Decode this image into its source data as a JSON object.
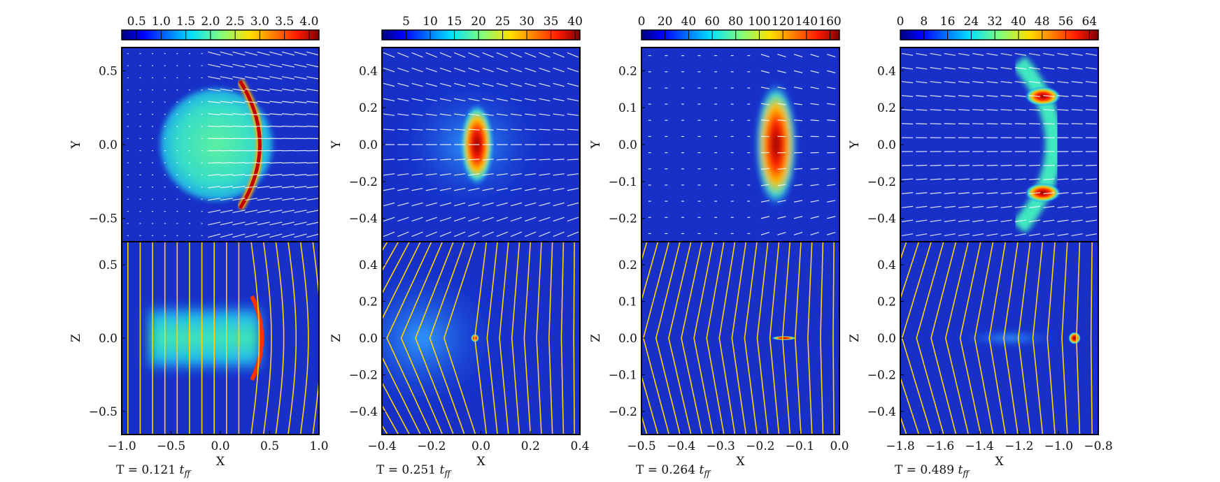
{
  "figure": {
    "panels": [
      {
        "colorbar": {
          "ticks": [
            "0.5",
            "1.0",
            "1.5",
            "2.0",
            "2.5",
            "3.0",
            "3.5",
            "4.0"
          ],
          "min": 0.2,
          "max": 4.2
        },
        "top": {
          "ylabel": "Y",
          "yticks": [
            "0.5",
            "0.0",
            "−0.5"
          ]
        },
        "bottom": {
          "ylabel": "Z",
          "yticks": [
            "0.5",
            "0.0",
            "−0.5"
          ]
        },
        "xlabel": "X",
        "xticks": [
          "−1.0",
          "−0.5",
          "0.0",
          "0.5",
          "1.0"
        ],
        "time": {
          "prefix": "T = 0.121 ",
          "var": "t",
          "sub": "ff"
        }
      },
      {
        "colorbar": {
          "ticks": [
            "5",
            "10",
            "15",
            "20",
            "25",
            "30",
            "35",
            "40"
          ],
          "min": 0,
          "max": 41
        },
        "top": {
          "ylabel": "Y",
          "yticks": [
            "0.4",
            "0.2",
            "0.0",
            "−0.2",
            "−0.4"
          ]
        },
        "bottom": {
          "ylabel": "Z",
          "yticks": [
            "0.4",
            "0.2",
            "0.0",
            "−0.2",
            "−0.4"
          ]
        },
        "xlabel": "X",
        "xticks": [
          "−0.4",
          "−0.2",
          "0.0",
          "0.2",
          "0.4"
        ],
        "time": {
          "prefix": "T = 0.251 ",
          "var": "t",
          "sub": "ff"
        }
      },
      {
        "colorbar": {
          "ticks": [
            "0",
            "20",
            "40",
            "60",
            "80",
            "100",
            "120",
            "140",
            "160"
          ],
          "min": 0,
          "max": 168
        },
        "top": {
          "ylabel": "Y",
          "yticks": [
            "0.2",
            "0.1",
            "0.0",
            "−0.1",
            "−0.2"
          ]
        },
        "bottom": {
          "ylabel": "Z",
          "yticks": [
            "0.2",
            "0.1",
            "0.0",
            "−0.1",
            "−0.2"
          ]
        },
        "xlabel": "X",
        "xticks": [
          "−0.5",
          "−0.4",
          "−0.3",
          "−0.2",
          "−0.1",
          "0.0"
        ],
        "time": {
          "prefix": "T = 0.264 ",
          "var": "t",
          "sub": "ff"
        }
      },
      {
        "colorbar": {
          "ticks": [
            "0",
            "8",
            "16",
            "24",
            "32",
            "40",
            "48",
            "56",
            "64"
          ],
          "min": 0,
          "max": 67
        },
        "top": {
          "ylabel": "Y",
          "yticks": [
            "0.4",
            "0.2",
            "0.0",
            "−0.2",
            "−0.4"
          ]
        },
        "bottom": {
          "ylabel": "Z",
          "yticks": [
            "0.4",
            "0.2",
            "0.0",
            "−0.2",
            "−0.4"
          ]
        },
        "xlabel": "X",
        "xticks": [
          "−1.8",
          "−1.6",
          "−1.4",
          "−1.2",
          "−1.0",
          "−0.8"
        ],
        "time": {
          "prefix": "T = 0.489 ",
          "var": "t",
          "sub": "ff"
        }
      }
    ]
  },
  "chart_data": [
    {
      "type": "heatmap",
      "title": "",
      "time": "T = 0.121 t_ff",
      "colorbar_range": [
        0.2,
        4.2
      ],
      "colormap": "jet",
      "top": {
        "xlabel": "X",
        "ylabel": "Y",
        "xlim": [
          -1.0,
          1.0
        ],
        "ylim": [
          -0.95,
          0.95
        ],
        "overlay": "velocity vectors"
      },
      "bottom": {
        "xlabel": "X",
        "ylabel": "Z",
        "xlim": [
          -1.0,
          1.0
        ],
        "ylim": [
          -0.95,
          0.95
        ],
        "overlay": "magnetic field lines"
      }
    },
    {
      "type": "heatmap",
      "title": "",
      "time": "T = 0.251 t_ff",
      "colorbar_range": [
        0,
        41
      ],
      "colormap": "jet",
      "top": {
        "xlabel": "X",
        "ylabel": "Y",
        "xlim": [
          -0.6,
          0.4
        ],
        "ylim": [
          -0.48,
          0.48
        ],
        "overlay": "velocity vectors"
      },
      "bottom": {
        "xlabel": "X",
        "ylabel": "Z",
        "xlim": [
          -0.6,
          0.4
        ],
        "ylim": [
          -0.48,
          0.48
        ],
        "overlay": "magnetic field lines"
      }
    },
    {
      "type": "heatmap",
      "title": "",
      "time": "T = 0.264 t_ff",
      "colorbar_range": [
        0,
        168
      ],
      "colormap": "jet",
      "top": {
        "xlabel": "X",
        "ylabel": "Y",
        "xlim": [
          -0.6,
          0.0
        ],
        "ylim": [
          -0.29,
          0.29
        ],
        "overlay": "velocity vectors"
      },
      "bottom": {
        "xlabel": "X",
        "ylabel": "Z",
        "xlim": [
          -0.6,
          0.0
        ],
        "ylim": [
          -0.29,
          0.29
        ],
        "overlay": "magnetic field lines"
      }
    },
    {
      "type": "heatmap",
      "title": "",
      "time": "T = 0.489 t_ff",
      "colorbar_range": [
        0,
        67
      ],
      "colormap": "jet",
      "top": {
        "xlabel": "X",
        "ylabel": "Y",
        "xlim": [
          -1.8,
          -0.8
        ],
        "ylim": [
          -0.48,
          0.48
        ],
        "overlay": "velocity vectors"
      },
      "bottom": {
        "xlabel": "X",
        "ylabel": "Z",
        "xlim": [
          -1.8,
          -0.8
        ],
        "ylim": [
          -0.48,
          0.48
        ],
        "overlay": "magnetic field lines"
      }
    }
  ]
}
